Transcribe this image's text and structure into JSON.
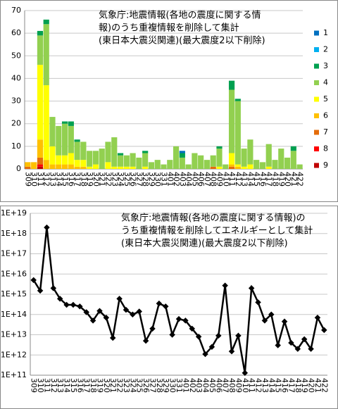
{
  "chart_data": [
    {
      "type": "stacked_bar",
      "title": [
        "気象庁:地震情報(各地の震度に関する情",
        "報)のうち重複情報を削除して集計",
        "(東日本大震災関連)(最大震度2以下削除)"
      ],
      "categories": [
        "309",
        "310",
        "311",
        "312",
        "313",
        "314",
        "315",
        "316",
        "317",
        "318",
        "319",
        "320",
        "321",
        "322",
        "323",
        "324",
        "325",
        "326",
        "327",
        "328",
        "329",
        "330",
        "331",
        "401",
        "402",
        "403",
        "404",
        "405",
        "406",
        "407",
        "408",
        "409",
        "410",
        "411",
        "412",
        "413",
        "414",
        "415",
        "416",
        "417",
        "418",
        "419",
        "420",
        "421",
        "422"
      ],
      "series": [
        {
          "name": "1",
          "color": "#0070c0",
          "values": [
            0,
            0,
            0,
            0,
            0,
            0,
            0,
            0,
            0,
            0,
            0,
            0,
            0,
            0,
            0,
            0,
            0,
            0,
            0,
            0,
            0,
            0,
            0,
            0,
            0,
            1,
            0,
            0,
            0,
            0,
            0,
            0,
            0,
            0,
            0,
            0,
            0,
            0,
            0,
            0,
            0,
            0,
            0,
            0,
            0
          ]
        },
        {
          "name": "2",
          "color": "#00b0f0",
          "values": [
            0,
            0,
            0,
            0,
            0,
            0,
            0,
            0,
            0,
            0,
            0,
            0,
            0,
            0,
            0,
            0,
            0,
            0,
            0,
            0,
            0,
            0,
            0,
            0,
            0,
            0,
            0,
            0,
            0,
            0,
            0,
            0,
            0,
            0,
            0,
            0,
            0,
            0,
            0,
            0,
            0,
            0,
            0,
            0,
            0
          ]
        },
        {
          "name": "3",
          "color": "#00a050",
          "values": [
            0,
            0,
            2,
            2,
            0,
            0,
            1,
            2,
            1,
            0,
            0,
            0,
            0,
            0,
            0,
            1,
            0,
            0,
            0,
            1,
            0,
            0,
            0,
            0,
            0,
            2,
            0,
            0,
            0,
            0,
            0,
            1,
            0,
            4,
            1,
            0,
            0,
            0,
            0,
            0,
            0,
            0,
            0,
            2,
            0
          ]
        },
        {
          "name": "4",
          "color": "#92d050",
          "values": [
            0,
            0,
            13,
            27,
            13,
            13,
            14,
            12,
            8,
            8,
            7,
            6,
            9,
            9,
            13,
            5,
            5,
            6,
            5,
            6,
            3,
            4,
            2,
            4,
            10,
            5,
            2,
            7,
            6,
            4,
            5,
            8,
            2,
            28,
            28,
            8,
            11,
            4,
            3,
            10,
            4,
            9,
            5,
            8,
            2
          ]
        },
        {
          "name": "5",
          "color": "#ffff00",
          "values": [
            0,
            0,
            33,
            33,
            8,
            4,
            4,
            5,
            3,
            3,
            1,
            2,
            0,
            3,
            1,
            1,
            1,
            1,
            0,
            1,
            0,
            0,
            0,
            0,
            0,
            0,
            0,
            0,
            0,
            0,
            0,
            1,
            0,
            5,
            1,
            1,
            2,
            0,
            0,
            1,
            0,
            0,
            0,
            0,
            0
          ]
        },
        {
          "name": "6",
          "color": "#ffc000",
          "values": [
            2,
            3,
            8,
            4,
            2,
            2,
            2,
            2,
            1,
            1,
            0,
            0,
            0,
            0,
            0,
            0,
            0,
            0,
            0,
            0,
            0,
            0,
            0,
            0,
            0,
            0,
            0,
            0,
            0,
            0,
            0,
            0,
            0,
            1,
            1,
            0,
            0,
            0,
            0,
            0,
            0,
            0,
            0,
            0,
            0
          ]
        },
        {
          "name": "7",
          "color": "#e46c0a",
          "values": [
            1,
            0,
            3,
            0,
            0,
            0,
            0,
            0,
            0,
            0,
            0,
            0,
            0,
            0,
            0,
            0,
            0,
            0,
            0,
            0,
            0,
            0,
            0,
            0,
            0,
            0,
            0,
            0,
            0,
            0,
            1,
            0,
            0,
            1,
            0,
            0,
            0,
            0,
            0,
            0,
            0,
            0,
            0,
            0,
            0
          ]
        },
        {
          "name": "8",
          "color": "#ff0000",
          "values": [
            0,
            0,
            1,
            0,
            0,
            0,
            0,
            0,
            0,
            0,
            0,
            0,
            0,
            0,
            0,
            0,
            0,
            0,
            0,
            0,
            0,
            0,
            0,
            0,
            0,
            0,
            0,
            0,
            0,
            0,
            0,
            0,
            0,
            0,
            0,
            0,
            0,
            0,
            0,
            0,
            0,
            0,
            0,
            0,
            0
          ]
        },
        {
          "name": "9",
          "color": "#c00000",
          "values": [
            0,
            0,
            1,
            0,
            0,
            0,
            0,
            0,
            0,
            0,
            0,
            0,
            0,
            0,
            0,
            0,
            0,
            0,
            0,
            0,
            0,
            0,
            0,
            0,
            0,
            0,
            0,
            0,
            0,
            0,
            0,
            0,
            0,
            0,
            0,
            0,
            0,
            0,
            0,
            0,
            0,
            0,
            0,
            0,
            0
          ]
        }
      ],
      "ylim": [
        0,
        70
      ],
      "yticks": [
        0,
        10,
        20,
        30,
        40,
        50,
        60,
        70
      ],
      "grid": true,
      "legend": "right"
    },
    {
      "type": "line",
      "log_scale": true,
      "title": [
        "気象庁:地震情報(各地の震度に関する情報)の",
        "うち重複情報を削除してエネルギーとして集計",
        "(東日本大震災関連)(最大震度2以下削除)"
      ],
      "categories": [
        "309",
        "310",
        "311",
        "312",
        "313",
        "314",
        "315",
        "316",
        "317",
        "318",
        "319",
        "320",
        "321",
        "322",
        "323",
        "324",
        "325",
        "326",
        "327",
        "328",
        "329",
        "330",
        "331",
        "401",
        "402",
        "403",
        "404",
        "405",
        "406",
        "407",
        "408",
        "409",
        "410",
        "411",
        "412",
        "413",
        "414",
        "415",
        "416",
        "417",
        "418",
        "419",
        "420",
        "421",
        "422"
      ],
      "color": "#000000",
      "values": [
        5000000000000000.0,
        1500000000000000.0,
        2e+18,
        2000000000000000.0,
        600000000000000.0,
        300000000000000.0,
        300000000000000.0,
        250000000000000.0,
        130000000000000.0,
        50000000000000.0,
        150000000000000.0,
        70000000000000.0,
        7000000000000.0,
        600000000000000.0,
        170000000000000.0,
        100000000000000.0,
        140000000000000.0,
        5000000000000.0,
        20000000000000.0,
        350000000000000.0,
        250000000000000.0,
        10000000000000.0,
        60000000000000.0,
        50000000000000.0,
        20000000000000.0,
        8000000000000.0,
        1100000000000.0,
        2500000000000.0,
        9000000000000.0,
        2700000000000000.0,
        1500000000000.0,
        9000000000000.0,
        130000000000.0,
        2000000000000000.0,
        400000000000000.0,
        50000000000000.0,
        100000000000000.0,
        3000000000000.0,
        45000000000000.0,
        4000000000000.0,
        2000000000000.0,
        6000000000000.0,
        2000000000000.0,
        70000000000000.0,
        17000000000000.0
      ],
      "ylim": [
        100000000000.0,
        1e+19
      ],
      "yticks": [
        {
          "value": 100000000000.0,
          "label": "1E+11"
        },
        {
          "value": 1000000000000.0,
          "label": "1E+12"
        },
        {
          "value": 10000000000000.0,
          "label": "1E+13"
        },
        {
          "value": 100000000000000.0,
          "label": "1E+14"
        },
        {
          "value": 1000000000000000.0,
          "label": "1E+15"
        },
        {
          "value": 1e+16,
          "label": "1E+16"
        },
        {
          "value": 1e+17,
          "label": "1E+17"
        },
        {
          "value": 1e+18,
          "label": "1E+18"
        },
        {
          "value": 1e+19,
          "label": "1E+19"
        }
      ],
      "grid": true
    }
  ]
}
